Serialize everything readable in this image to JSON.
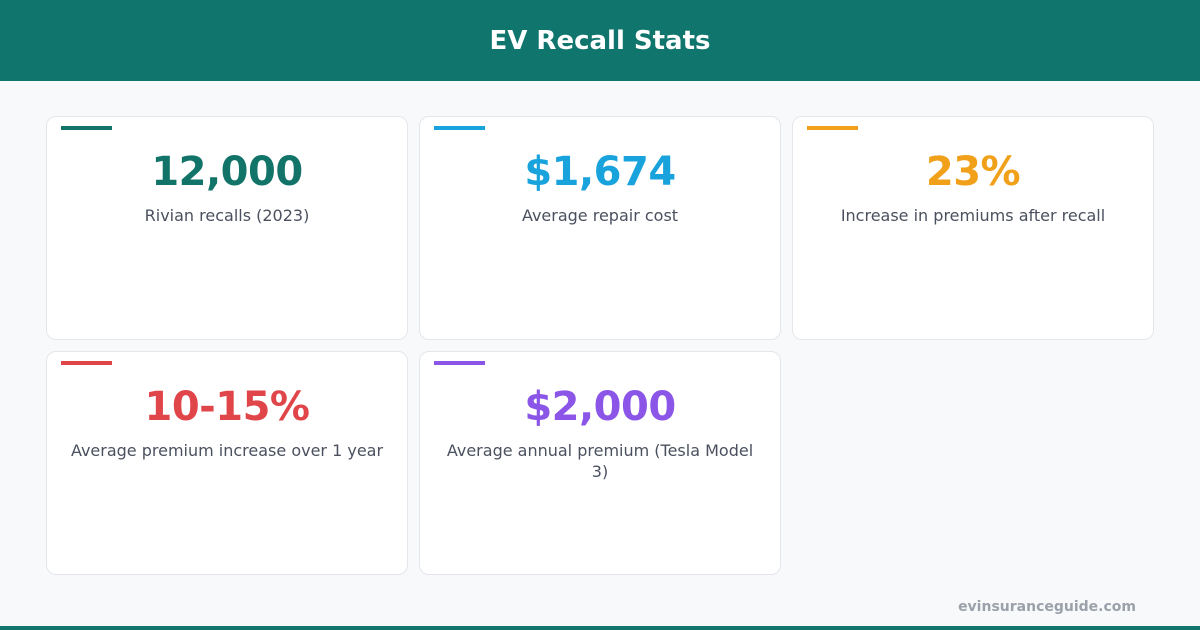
{
  "header": {
    "title": "EV Recall Stats"
  },
  "cards": [
    {
      "value": "12,000",
      "label": "Rivian recalls (2023)",
      "color": "#127369"
    },
    {
      "value": "$1,674",
      "label": "Average repair cost",
      "color": "#19a3dc"
    },
    {
      "value": "23%",
      "label": "Increase in premiums after recall",
      "color": "#f0a019"
    },
    {
      "value": "10-15%",
      "label": "Average premium increase over 1 year",
      "color": "#e0454a"
    },
    {
      "value": "$2,000",
      "label": "Average annual premium (Tesla Model 3)",
      "color": "#8b55e8"
    }
  ],
  "footer": {
    "source": "evinsuranceguide.com"
  }
}
